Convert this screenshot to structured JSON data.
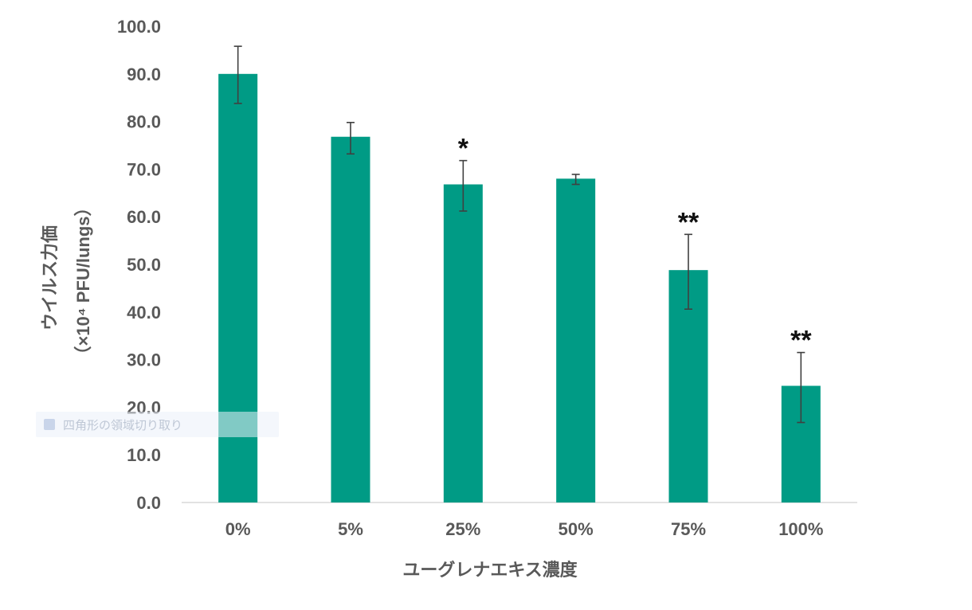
{
  "chart_data": {
    "type": "bar",
    "categories": [
      "0%",
      "5%",
      "25%",
      "50%",
      "75%",
      "100%"
    ],
    "values": [
      90.0,
      76.8,
      66.8,
      68.0,
      48.8,
      24.5
    ],
    "error_upper": [
      95.8,
      79.8,
      71.8,
      68.9,
      56.3,
      31.5
    ],
    "error_lower": [
      83.8,
      73.2,
      61.2,
      66.8,
      40.6,
      16.8
    ],
    "significance": [
      "",
      "",
      "*",
      "",
      "**",
      "**"
    ],
    "xlabel": "ユーグレナエキス濃度",
    "ylabel_line1": "ウイルス力価",
    "ylabel_line2": "（×10⁴ PFU/lungs）",
    "ylim": [
      0,
      100
    ],
    "yticks": [
      "0.0",
      "10.0",
      "20.0",
      "30.0",
      "40.0",
      "50.0",
      "60.0",
      "70.0",
      "80.0",
      "90.0",
      "100.0"
    ],
    "grid": false,
    "bar_color": "#009B85",
    "error_bar_color": "#404040"
  },
  "overlay": {
    "text": "四角形の領域切り取り"
  }
}
